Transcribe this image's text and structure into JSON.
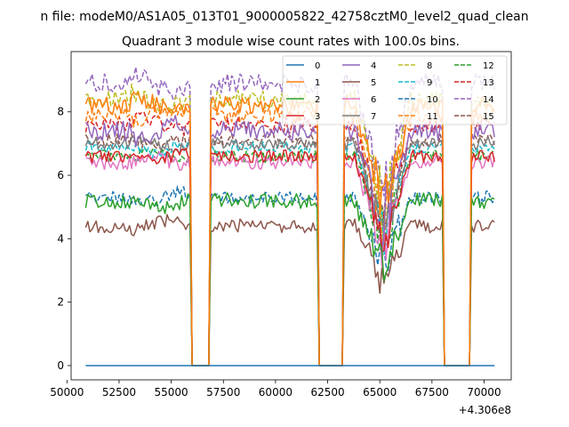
{
  "suptitle": "n file: modeM0/AS1A05_013T01_9000005822_42758cztM0_level2_quad_clean",
  "chart_data": {
    "type": "line",
    "title": "Quadrant 3 module wise count rates with 100.0s bins.",
    "xlabel": "",
    "ylabel": "",
    "x_offset_label": "+4.306e8",
    "xlim": [
      50200,
      71300
    ],
    "ylim": [
      -0.45,
      9.9
    ],
    "xticks": [
      50000,
      52500,
      55000,
      57500,
      60000,
      62500,
      65000,
      67500,
      70000
    ],
    "xtick_labels": [
      "50000",
      "52500",
      "55000",
      "57500",
      "60000",
      "62500",
      "65000",
      "67500",
      "70000"
    ],
    "yticks": [
      0,
      2,
      4,
      6,
      8
    ],
    "ytick_labels": [
      "0",
      "2",
      "4",
      "6",
      "8"
    ],
    "legend_location": "upper right",
    "x_start": 50900,
    "x_end": 70500,
    "bin_width": 100,
    "zero_gaps": [
      [
        55950,
        56800
      ],
      [
        62100,
        63200
      ],
      [
        68100,
        69350
      ]
    ],
    "dip_segment": [
      63800,
      66500
    ],
    "series": [
      {
        "name": "0",
        "color": "#1f77b4",
        "dash": "solid",
        "level": 0.0,
        "noise": 0.0
      },
      {
        "name": "1",
        "color": "#ff7f0e",
        "dash": "solid",
        "level": 8.2,
        "noise": 0.28
      },
      {
        "name": "2",
        "color": "#2ca02c",
        "dash": "solid",
        "level": 5.2,
        "noise": 0.25
      },
      {
        "name": "3",
        "color": "#d62728",
        "dash": "solid",
        "level": 6.6,
        "noise": 0.2
      },
      {
        "name": "4",
        "color": "#9467bd",
        "dash": "solid",
        "level": 7.4,
        "noise": 0.3
      },
      {
        "name": "5",
        "color": "#8c564b",
        "dash": "solid",
        "level": 4.4,
        "noise": 0.22
      },
      {
        "name": "6",
        "color": "#e377c2",
        "dash": "solid",
        "level": 6.4,
        "noise": 0.22
      },
      {
        "name": "7",
        "color": "#7f7f7f",
        "dash": "solid",
        "level": 7.0,
        "noise": 0.2
      },
      {
        "name": "8",
        "color": "#bcbd22",
        "dash": "dashed",
        "level": 8.4,
        "noise": 0.28
      },
      {
        "name": "9",
        "color": "#17becf",
        "dash": "dashed",
        "level": 6.9,
        "noise": 0.2
      },
      {
        "name": "10",
        "color": "#1f77b4",
        "dash": "dashed",
        "level": 5.3,
        "noise": 0.2
      },
      {
        "name": "11",
        "color": "#ff7f0e",
        "dash": "dashed",
        "level": 7.9,
        "noise": 0.25
      },
      {
        "name": "12",
        "color": "#2ca02c",
        "dash": "dashed",
        "level": 6.6,
        "noise": 0.2
      },
      {
        "name": "13",
        "color": "#d62728",
        "dash": "dashed",
        "level": 7.6,
        "noise": 0.25
      },
      {
        "name": "14",
        "color": "#9467bd",
        "dash": "dashed",
        "level": 8.9,
        "noise": 0.3
      },
      {
        "name": "15",
        "color": "#8c564b",
        "dash": "dashed",
        "level": 7.1,
        "noise": 0.22
      }
    ]
  }
}
